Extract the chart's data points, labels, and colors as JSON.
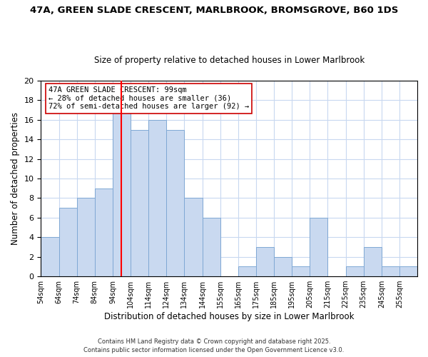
{
  "title_line1": "47A, GREEN SLADE CRESCENT, MARLBROOK, BROMSGROVE, B60 1DS",
  "title_line2": "Size of property relative to detached houses in Lower Marlbrook",
  "xlabel": "Distribution of detached houses by size in Lower Marlbrook",
  "ylabel": "Number of detached properties",
  "bin_labels": [
    "54sqm",
    "64sqm",
    "74sqm",
    "84sqm",
    "94sqm",
    "104sqm",
    "114sqm",
    "124sqm",
    "134sqm",
    "144sqm",
    "155sqm",
    "165sqm",
    "175sqm",
    "185sqm",
    "195sqm",
    "205sqm",
    "215sqm",
    "225sqm",
    "235sqm",
    "245sqm",
    "255sqm"
  ],
  "bar_heights": [
    4,
    7,
    8,
    9,
    17,
    15,
    16,
    15,
    8,
    6,
    0,
    1,
    3,
    2,
    1,
    6,
    0,
    1,
    3,
    1,
    1
  ],
  "bar_color": "#c9d9f0",
  "bar_edgecolor": "#7fa8d4",
  "reference_line_color": "red",
  "ylim": [
    0,
    20
  ],
  "yticks": [
    0,
    2,
    4,
    6,
    8,
    10,
    12,
    14,
    16,
    18,
    20
  ],
  "annotation_title": "47A GREEN SLADE CRESCENT: 99sqm",
  "annotation_line2": "← 28% of detached houses are smaller (36)",
  "annotation_line3": "72% of semi-detached houses are larger (92) →",
  "footer_line1": "Contains HM Land Registry data © Crown copyright and database right 2025.",
  "footer_line2": "Contains public sector information licensed under the Open Government Licence v3.0.",
  "background_color": "#ffffff",
  "grid_color": "#c8d8f0"
}
